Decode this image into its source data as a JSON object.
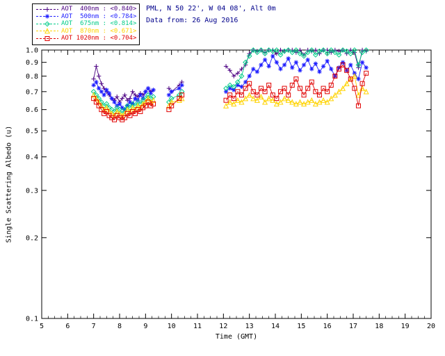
{
  "header": {
    "site_line": "PML, N 50 22', W 04 08', Alt 0m",
    "date_line": "Data from: 26 Aug 2016",
    "text_color": "#00008b"
  },
  "legend": {
    "entries": [
      {
        "label": "AOT  400nm",
        "value": "<0.840>",
        "color": "#4b0082",
        "marker": "plus"
      },
      {
        "label": "AOT  500nm",
        "value": "<0.784>",
        "color": "#1c1cff",
        "marker": "asterisk"
      },
      {
        "label": "AOT  675nm",
        "value": "<0.814>",
        "color": "#00cc88",
        "marker": "diamond"
      },
      {
        "label": "AOT  870nm",
        "value": "<0.671>",
        "color": "#ffd300",
        "marker": "triangle"
      },
      {
        "label": "AOT 1020nm",
        "value": "<0.704>",
        "color": "#e00000",
        "marker": "square"
      }
    ]
  },
  "chart_data": {
    "type": "line",
    "title": "",
    "xlabel": "Time (GMT)",
    "ylabel": "Single Scattering Albedo (u)",
    "xlim": [
      5,
      20
    ],
    "ylim": [
      0.1,
      1.0
    ],
    "yscale": "log",
    "grid": false,
    "legend_position": "top-left",
    "x_ticks": [
      5,
      6,
      7,
      8,
      9,
      10,
      11,
      12,
      13,
      14,
      15,
      16,
      17,
      18,
      19,
      20
    ],
    "y_ticks": [
      0.1,
      0.2,
      0.3,
      0.4,
      0.5,
      0.6,
      0.7,
      0.8,
      0.9,
      1.0
    ],
    "x": [
      7.0,
      7.1,
      7.2,
      7.3,
      7.4,
      7.5,
      7.6,
      7.7,
      7.8,
      7.9,
      8.0,
      8.1,
      8.2,
      8.3,
      8.4,
      8.5,
      8.6,
      8.7,
      8.8,
      8.9,
      9.0,
      9.1,
      9.2,
      9.3,
      9.9,
      10.0,
      10.3,
      10.4,
      12.1,
      12.25,
      12.4,
      12.55,
      12.7,
      12.85,
      13.0,
      13.15,
      13.3,
      13.45,
      13.6,
      13.75,
      13.9,
      14.05,
      14.2,
      14.35,
      14.5,
      14.65,
      14.8,
      14.95,
      15.1,
      15.25,
      15.4,
      15.55,
      15.7,
      15.85,
      16.0,
      16.15,
      16.3,
      16.45,
      16.6,
      16.75,
      16.9,
      17.05,
      17.2,
      17.35,
      17.5
    ],
    "series": [
      {
        "name": "AOT 400nm",
        "mean": 0.84,
        "color": "#4b0082",
        "marker": "plus",
        "values": [
          0.78,
          0.87,
          0.8,
          0.75,
          0.72,
          0.7,
          0.68,
          0.66,
          0.65,
          0.67,
          0.64,
          0.66,
          0.68,
          0.65,
          0.66,
          0.7,
          0.68,
          0.67,
          0.69,
          0.68,
          0.7,
          0.72,
          0.7,
          0.71,
          0.72,
          0.7,
          0.74,
          0.76,
          0.87,
          0.84,
          0.8,
          0.82,
          0.85,
          0.88,
          0.97,
          1.0,
          0.99,
          1.0,
          0.98,
          1.0,
          1.0,
          0.97,
          1.0,
          0.99,
          1.0,
          1.0,
          0.98,
          1.0,
          0.96,
          1.0,
          0.99,
          1.0,
          0.97,
          1.0,
          1.0,
          0.98,
          1.0,
          0.99,
          1.0,
          0.97,
          1.0,
          0.98,
          0.86,
          1.0,
          0.99
        ]
      },
      {
        "name": "AOT 500nm",
        "mean": 0.784,
        "color": "#1c1cff",
        "marker": "asterisk",
        "values": [
          0.74,
          0.76,
          0.72,
          0.7,
          0.68,
          0.71,
          0.69,
          0.66,
          0.64,
          0.62,
          0.63,
          0.61,
          0.6,
          0.62,
          0.64,
          0.63,
          0.66,
          0.65,
          0.68,
          0.66,
          0.7,
          0.72,
          0.69,
          0.71,
          0.68,
          0.7,
          0.72,
          0.74,
          0.7,
          0.72,
          0.71,
          0.74,
          0.73,
          0.76,
          0.8,
          0.85,
          0.83,
          0.88,
          0.92,
          0.87,
          0.95,
          0.9,
          0.85,
          0.88,
          0.93,
          0.86,
          0.9,
          0.84,
          0.88,
          0.92,
          0.85,
          0.89,
          0.83,
          0.87,
          0.91,
          0.85,
          0.8,
          0.86,
          0.9,
          0.84,
          0.88,
          0.82,
          0.78,
          0.9,
          0.86
        ]
      },
      {
        "name": "AOT 675nm",
        "mean": 0.814,
        "color": "#00cc88",
        "marker": "diamond",
        "values": [
          0.7,
          0.68,
          0.66,
          0.64,
          0.62,
          0.63,
          0.61,
          0.6,
          0.59,
          0.61,
          0.6,
          0.58,
          0.6,
          0.62,
          0.61,
          0.63,
          0.62,
          0.64,
          0.63,
          0.65,
          0.66,
          0.68,
          0.66,
          0.67,
          0.64,
          0.66,
          0.68,
          0.7,
          0.72,
          0.74,
          0.73,
          0.76,
          0.8,
          0.9,
          0.95,
          1.0,
          0.98,
          1.0,
          0.97,
          1.0,
          0.99,
          1.0,
          0.96,
          0.99,
          1.0,
          0.98,
          1.0,
          0.97,
          0.95,
          0.98,
          1.0,
          0.96,
          0.99,
          1.0,
          0.97,
          1.0,
          0.98,
          0.96,
          1.0,
          0.99,
          0.97,
          1.0,
          0.88,
          0.98,
          1.0
        ]
      },
      {
        "name": "AOT 870nm",
        "mean": 0.671,
        "color": "#ffd300",
        "marker": "triangle",
        "values": [
          0.68,
          0.66,
          0.64,
          0.62,
          0.6,
          0.61,
          0.59,
          0.58,
          0.57,
          0.59,
          0.58,
          0.57,
          0.58,
          0.6,
          0.59,
          0.61,
          0.6,
          0.62,
          0.61,
          0.63,
          0.64,
          0.66,
          0.64,
          0.65,
          0.62,
          0.64,
          0.65,
          0.66,
          0.62,
          0.64,
          0.63,
          0.65,
          0.64,
          0.66,
          0.68,
          0.66,
          0.65,
          0.67,
          0.64,
          0.66,
          0.65,
          0.63,
          0.64,
          0.66,
          0.65,
          0.64,
          0.63,
          0.64,
          0.63,
          0.64,
          0.65,
          0.63,
          0.64,
          0.65,
          0.64,
          0.66,
          0.68,
          0.7,
          0.72,
          0.75,
          0.78,
          0.8,
          0.68,
          0.72,
          0.7
        ]
      },
      {
        "name": "AOT 1020nm",
        "mean": 0.704,
        "color": "#e00000",
        "marker": "square",
        "values": [
          0.66,
          0.64,
          0.62,
          0.6,
          0.58,
          0.59,
          0.57,
          0.56,
          0.55,
          0.57,
          0.56,
          0.55,
          0.56,
          0.58,
          0.57,
          0.59,
          0.58,
          0.6,
          0.59,
          0.61,
          0.62,
          0.64,
          0.62,
          0.63,
          0.6,
          0.62,
          0.66,
          0.68,
          0.65,
          0.68,
          0.66,
          0.7,
          0.68,
          0.72,
          0.75,
          0.7,
          0.68,
          0.72,
          0.7,
          0.74,
          0.68,
          0.66,
          0.7,
          0.72,
          0.68,
          0.74,
          0.78,
          0.72,
          0.68,
          0.72,
          0.76,
          0.7,
          0.68,
          0.72,
          0.7,
          0.74,
          0.8,
          0.85,
          0.88,
          0.84,
          0.78,
          0.72,
          0.62,
          0.75,
          0.82
        ]
      }
    ]
  }
}
